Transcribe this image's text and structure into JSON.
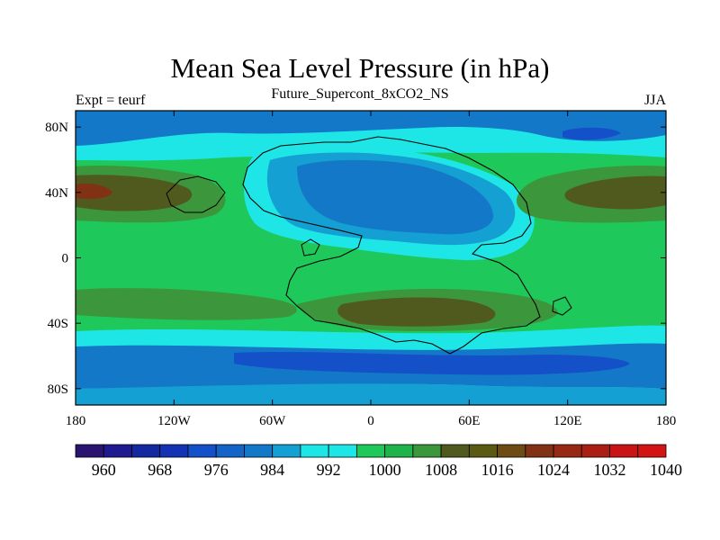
{
  "map": {
    "title": "Mean Sea Level Pressure (in hPa)",
    "subtitle": "Future_Supercont_8xCO2_NS",
    "left_label": "Expt = teurf",
    "right_label": "JJA",
    "lat_ticks": [
      {
        "lat": 80,
        "label": "80N"
      },
      {
        "lat": 40,
        "label": "40N"
      },
      {
        "lat": 0,
        "label": "0"
      },
      {
        "lat": -40,
        "label": "40S"
      },
      {
        "lat": -80,
        "label": "80S"
      }
    ],
    "lon_ticks": [
      {
        "lon": -180,
        "label": "180"
      },
      {
        "lon": -120,
        "label": "120W"
      },
      {
        "lon": -60,
        "label": "60W"
      },
      {
        "lon": 0,
        "label": "0"
      },
      {
        "lon": 60,
        "label": "60E"
      },
      {
        "lon": 120,
        "label": "120E"
      },
      {
        "lon": 180,
        "label": "180"
      }
    ],
    "colorbar": {
      "colors": [
        "#2a1470",
        "#201a90",
        "#1428a0",
        "#1432b4",
        "#1450c8",
        "#1464c8",
        "#1478c8",
        "#14a0d2",
        "#1ee6e6",
        "#1ee6e6",
        "#1ec85a",
        "#1eb44b",
        "#3c963c",
        "#505a1e",
        "#5a5a14",
        "#6e4b14",
        "#823214",
        "#962814",
        "#aa1e14",
        "#c81414",
        "#d21414"
      ],
      "labels": [
        {
          "index": 2,
          "text": "960"
        },
        {
          "index": 4,
          "text": "968"
        },
        {
          "index": 6,
          "text": "976"
        },
        {
          "index": 8,
          "text": "984"
        },
        {
          "index": 10,
          "text": "992"
        },
        {
          "index": 12,
          "text": "1000"
        },
        {
          "index": 14,
          "text": "1008"
        },
        {
          "index": 16,
          "text": "1016"
        },
        {
          "index": 18,
          "text": "1024"
        },
        {
          "index": 20,
          "text": "1032"
        },
        {
          "index": 22,
          "text": "1040"
        }
      ]
    }
  }
}
